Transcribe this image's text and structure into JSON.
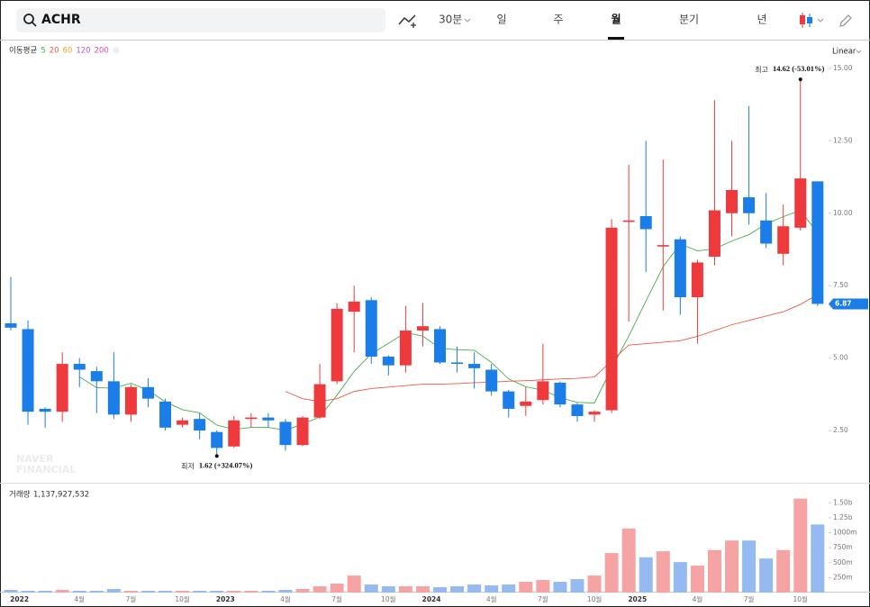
{
  "toolbar": {
    "symbol": "ACHR",
    "interval": "30분",
    "periods": [
      "일",
      "주",
      "월",
      "분기",
      "년"
    ]
  },
  "chart_data": [
    {
      "type": "candlestick",
      "ma_label": "이동평균",
      "scale_label": "Linear",
      "watermark": [
        "NAVER",
        "FINANCIAL"
      ],
      "up_color": "#ee3a3d",
      "down_color": "#1b7de8",
      "categories": [
        null,
        "2022",
        null,
        null,
        "4월",
        null,
        null,
        "7월",
        null,
        null,
        "10월",
        null,
        null,
        "2023",
        null,
        null,
        "4월",
        null,
        null,
        "7월",
        null,
        null,
        "10월",
        null,
        null,
        "2024",
        null,
        null,
        "4월",
        null,
        null,
        "7월",
        null,
        null,
        "10월",
        null,
        null,
        "2025",
        null,
        null,
        "4월",
        null,
        null,
        "7월",
        null,
        null,
        "10월",
        null
      ],
      "candles": {
        "open": [
          6.2,
          6.0,
          3.25,
          3.15,
          4.8,
          4.55,
          4.2,
          3.05,
          4.0,
          3.5,
          2.7,
          2.9,
          2.45,
          1.95,
          2.9,
          2.95,
          2.8,
          2.0,
          2.95,
          4.2,
          6.6,
          7.0,
          5.05,
          4.75,
          5.95,
          6.0,
          4.85,
          4.8,
          4.6,
          3.85,
          3.35,
          3.55,
          4.15,
          3.4,
          3.05,
          3.2,
          9.7,
          9.9,
          8.85,
          9.1,
          7.1,
          8.5,
          10.0,
          10.55,
          9.75,
          8.6,
          9.5,
          11.1
        ],
        "high": [
          7.8,
          6.3,
          3.3,
          5.2,
          5.0,
          4.7,
          5.2,
          4.1,
          4.3,
          3.6,
          2.95,
          3.1,
          2.5,
          3.0,
          3.1,
          3.1,
          2.9,
          3.0,
          4.8,
          6.9,
          7.5,
          7.1,
          5.1,
          6.8,
          6.9,
          6.1,
          5.4,
          5.2,
          4.8,
          3.9,
          4.0,
          5.5,
          4.2,
          3.45,
          3.2,
          9.8,
          11.67,
          12.5,
          11.85,
          9.2,
          8.4,
          13.9,
          12.5,
          13.7,
          10.7,
          10.3,
          14.62,
          11.1
        ],
        "low": [
          5.95,
          2.7,
          2.6,
          2.8,
          4.0,
          3.1,
          2.9,
          2.8,
          3.3,
          2.5,
          2.6,
          2.2,
          1.62,
          1.9,
          2.6,
          2.6,
          1.8,
          1.95,
          2.9,
          4.1,
          5.2,
          4.8,
          4.4,
          4.5,
          5.4,
          4.8,
          4.5,
          3.95,
          3.7,
          2.95,
          3.0,
          3.4,
          3.3,
          2.8,
          2.8,
          3.1,
          6.26,
          7.97,
          6.64,
          6.5,
          5.5,
          8.2,
          9.2,
          9.6,
          8.8,
          8.2,
          9.4,
          6.8
        ],
        "close": [
          6.05,
          3.15,
          3.15,
          4.8,
          4.6,
          4.2,
          3.05,
          4.0,
          3.6,
          2.6,
          2.85,
          2.5,
          1.9,
          2.85,
          2.95,
          2.85,
          2.0,
          2.95,
          4.1,
          6.7,
          6.95,
          5.05,
          4.75,
          5.95,
          6.1,
          4.85,
          4.8,
          4.65,
          3.85,
          3.25,
          3.5,
          4.2,
          3.4,
          3.0,
          3.15,
          9.5,
          9.75,
          9.45,
          8.9,
          7.1,
          8.3,
          10.1,
          10.8,
          10.0,
          8.95,
          9.55,
          11.2,
          6.87
        ]
      },
      "series": [
        {
          "name": "5",
          "color": "#45b04b",
          "values": [
            null,
            null,
            null,
            null,
            4.35,
            3.98,
            3.96,
            4.13,
            3.89,
            3.49,
            3.22,
            3.11,
            2.69,
            2.54,
            2.61,
            2.61,
            2.51,
            2.72,
            2.97,
            3.72,
            4.54,
            5.15,
            5.51,
            5.88,
            5.76,
            5.34,
            5.29,
            5.27,
            4.85,
            4.28,
            4.01,
            3.89,
            3.64,
            3.47,
            3.45,
            4.65,
            5.76,
            6.97,
            8.15,
            8.94,
            8.7,
            8.77,
            9.04,
            9.26,
            9.63,
            9.88,
            10.1,
            9.31
          ]
        },
        {
          "name": "20",
          "color": "#ef5a45",
          "values": [
            null,
            null,
            null,
            null,
            null,
            null,
            null,
            null,
            null,
            null,
            null,
            null,
            null,
            null,
            null,
            null,
            3.85,
            3.6,
            3.5,
            3.6,
            3.85,
            3.95,
            4.0,
            4.05,
            4.1,
            4.1,
            4.12,
            4.15,
            4.17,
            4.2,
            4.22,
            4.25,
            4.28,
            4.3,
            4.35,
            4.9,
            5.45,
            5.5,
            5.55,
            5.6,
            5.75,
            5.95,
            6.15,
            6.3,
            6.45,
            6.6,
            6.85,
            7.2
          ]
        },
        {
          "name": "60",
          "color": "#f5a623",
          "values": [
            null,
            null,
            null,
            null,
            null,
            null,
            null,
            null,
            null,
            null,
            null,
            null,
            null,
            null,
            null,
            null,
            null,
            null,
            null,
            null,
            null,
            null,
            null,
            null,
            null,
            null,
            null,
            null,
            null,
            null,
            null,
            null,
            null,
            null,
            null,
            null,
            null,
            null,
            null,
            null,
            null,
            null,
            null,
            null,
            null,
            null,
            null,
            null
          ]
        },
        {
          "name": "120",
          "color": "#a35fe0",
          "values": [
            null,
            null,
            null,
            null,
            null,
            null,
            null,
            null,
            null,
            null,
            null,
            null,
            null,
            null,
            null,
            null,
            null,
            null,
            null,
            null,
            null,
            null,
            null,
            null,
            null,
            null,
            null,
            null,
            null,
            null,
            null,
            null,
            null,
            null,
            null,
            null,
            null,
            null,
            null,
            null,
            null,
            null,
            null,
            null,
            null,
            null,
            null,
            null
          ]
        },
        {
          "name": "200",
          "color": "#ec4f9d",
          "values": [
            null,
            null,
            null,
            null,
            null,
            null,
            null,
            null,
            null,
            null,
            null,
            null,
            null,
            null,
            null,
            null,
            null,
            null,
            null,
            null,
            null,
            null,
            null,
            null,
            null,
            null,
            null,
            null,
            null,
            null,
            null,
            null,
            null,
            null,
            null,
            null,
            null,
            null,
            null,
            null,
            null,
            null,
            null,
            null,
            null,
            null,
            null,
            null
          ]
        }
      ],
      "annotations": {
        "high": {
          "label": "최고",
          "text": "14.62 (-53.01%)"
        },
        "low": {
          "label": "최저",
          "text": "1.62 (+324.07%)"
        }
      },
      "ylim": [
        0.73,
        15.96
      ],
      "yticks": [
        {
          "value": 15,
          "label": "15.00"
        },
        {
          "value": 12.5,
          "label": "12.50"
        },
        {
          "value": 10,
          "label": "10.00"
        },
        {
          "value": 7.5,
          "label": "7.50"
        },
        {
          "value": 5,
          "label": "5.00"
        },
        {
          "value": 2.5,
          "label": "2.50"
        }
      ]
    },
    {
      "type": "bar",
      "label": "거래량",
      "total_text": "1,137,927,532",
      "up_color": "#f6a3a3",
      "down_color": "#94baf1",
      "values": [
        45,
        30,
        30,
        45,
        30,
        30,
        60,
        30,
        30,
        30,
        30,
        30,
        30,
        30,
        30,
        30,
        45,
        60,
        105,
        150,
        285,
        135,
        105,
        105,
        105,
        90,
        105,
        135,
        120,
        135,
        180,
        210,
        180,
        225,
        285,
        660,
        1070,
        590,
        690,
        510,
        450,
        710,
        870,
        870,
        570,
        710,
        1570,
        1137.93
      ],
      "ylim": [
        0,
        1730
      ],
      "yticks": [
        {
          "value": 1500,
          "label": "1.50b"
        },
        {
          "value": 1250,
          "label": "1.25b"
        },
        {
          "value": 1000,
          "label": "1000m"
        },
        {
          "value": 750,
          "label": "750m"
        },
        {
          "value": 500,
          "label": "500m"
        },
        {
          "value": 250,
          "label": "250m"
        }
      ]
    }
  ]
}
